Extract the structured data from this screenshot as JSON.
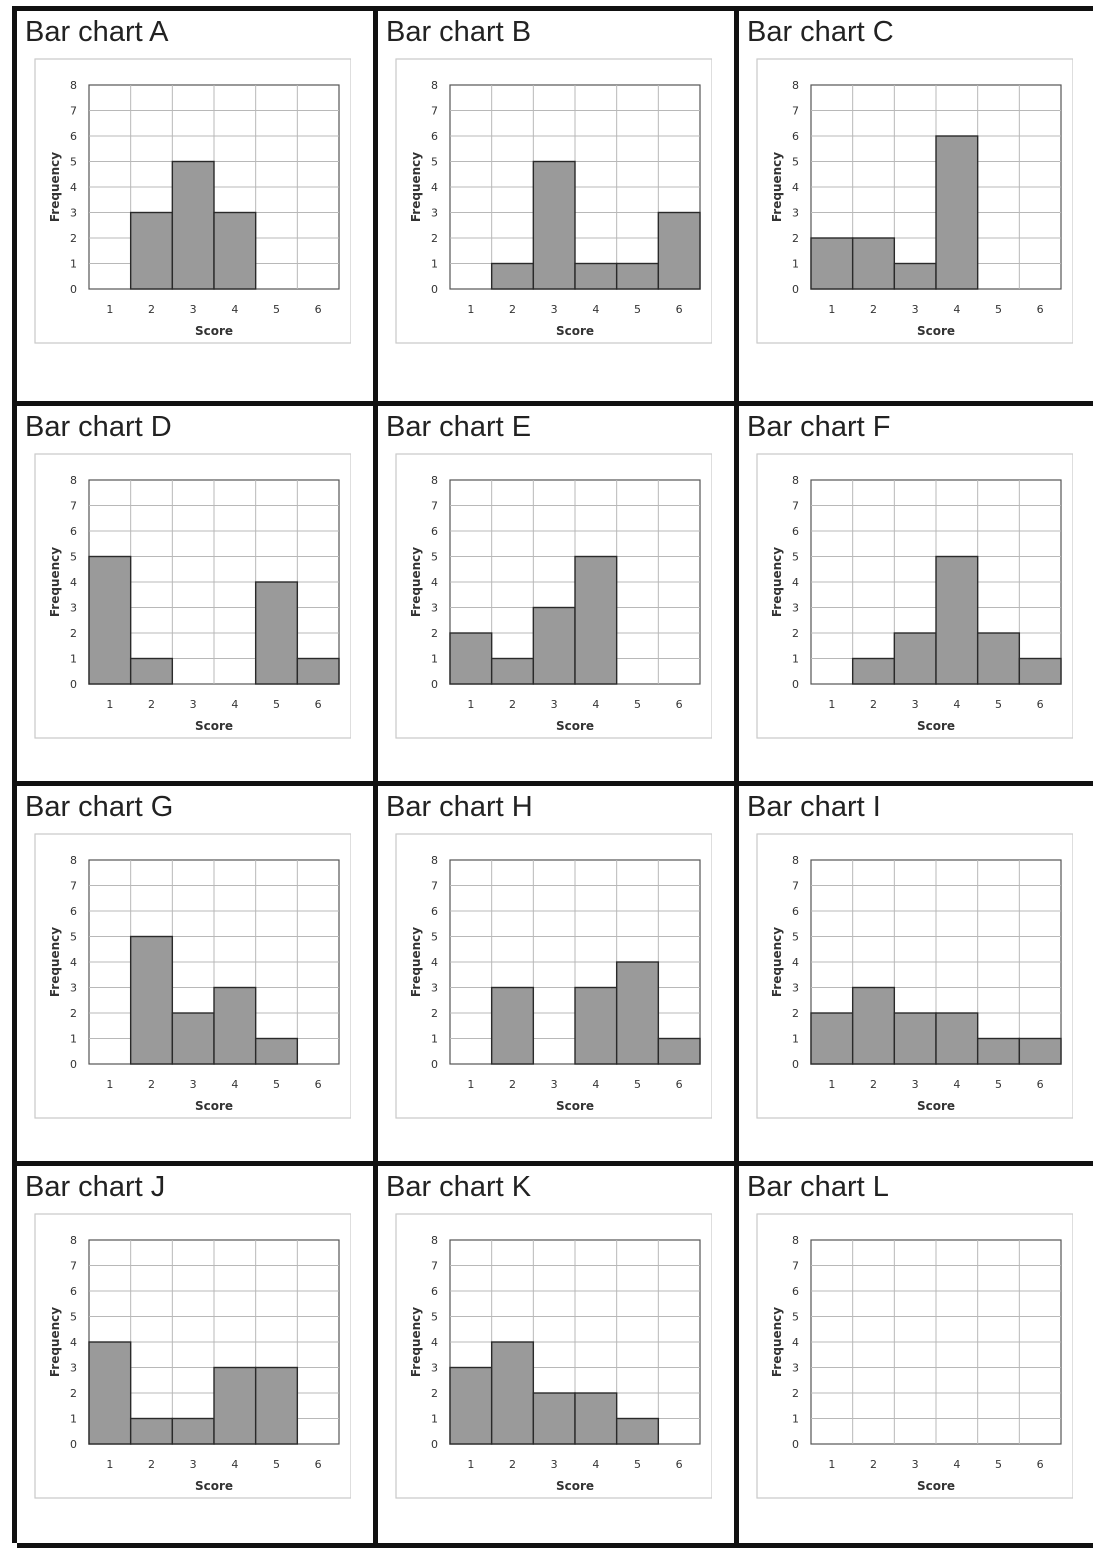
{
  "chart_data": [
    {
      "type": "bar",
      "title": "Bar chart A",
      "xlabel": "Score",
      "ylabel": "Frequency",
      "categories": [
        "1",
        "2",
        "3",
        "4",
        "5",
        "6"
      ],
      "values": [
        0,
        3,
        5,
        3,
        0,
        0
      ],
      "ylim": [
        0,
        8
      ],
      "yticks": [
        "0",
        "1",
        "2",
        "3",
        "4",
        "5",
        "6",
        "7",
        "8"
      ],
      "grid": true
    },
    {
      "type": "bar",
      "title": "Bar chart B",
      "xlabel": "Score",
      "ylabel": "Frequency",
      "categories": [
        "1",
        "2",
        "3",
        "4",
        "5",
        "6"
      ],
      "values": [
        0,
        1,
        5,
        1,
        1,
        3
      ],
      "ylim": [
        0,
        8
      ],
      "yticks": [
        "0",
        "1",
        "2",
        "3",
        "4",
        "5",
        "6",
        "7",
        "8"
      ],
      "grid": true
    },
    {
      "type": "bar",
      "title": "Bar chart C",
      "xlabel": "Score",
      "ylabel": "Frequency",
      "categories": [
        "1",
        "2",
        "3",
        "4",
        "5",
        "6"
      ],
      "values": [
        2,
        2,
        1,
        6,
        0,
        0
      ],
      "ylim": [
        0,
        8
      ],
      "yticks": [
        "0",
        "1",
        "2",
        "3",
        "4",
        "5",
        "6",
        "7",
        "8"
      ],
      "grid": true
    },
    {
      "type": "bar",
      "title": "Bar chart D",
      "xlabel": "Score",
      "ylabel": "Frequency",
      "categories": [
        "1",
        "2",
        "3",
        "4",
        "5",
        "6"
      ],
      "values": [
        5,
        1,
        0,
        0,
        4,
        1
      ],
      "ylim": [
        0,
        8
      ],
      "yticks": [
        "0",
        "1",
        "2",
        "3",
        "4",
        "5",
        "6",
        "7",
        "8"
      ],
      "grid": true
    },
    {
      "type": "bar",
      "title": "Bar chart E",
      "xlabel": "Score",
      "ylabel": "Frequency",
      "categories": [
        "1",
        "2",
        "3",
        "4",
        "5",
        "6"
      ],
      "values": [
        2,
        1,
        3,
        5,
        0,
        0
      ],
      "ylim": [
        0,
        8
      ],
      "yticks": [
        "0",
        "1",
        "2",
        "3",
        "4",
        "5",
        "6",
        "7",
        "8"
      ],
      "grid": true
    },
    {
      "type": "bar",
      "title": "Bar chart F",
      "xlabel": "Score",
      "ylabel": "Frequency",
      "categories": [
        "1",
        "2",
        "3",
        "4",
        "5",
        "6"
      ],
      "values": [
        0,
        1,
        2,
        5,
        2,
        1
      ],
      "ylim": [
        0,
        8
      ],
      "yticks": [
        "0",
        "1",
        "2",
        "3",
        "4",
        "5",
        "6",
        "7",
        "8"
      ],
      "grid": true
    },
    {
      "type": "bar",
      "title": "Bar chart G",
      "xlabel": "Score",
      "ylabel": "Frequency",
      "categories": [
        "1",
        "2",
        "3",
        "4",
        "5",
        "6"
      ],
      "values": [
        0,
        5,
        2,
        3,
        1,
        0
      ],
      "ylim": [
        0,
        8
      ],
      "yticks": [
        "0",
        "1",
        "2",
        "3",
        "4",
        "5",
        "6",
        "7",
        "8"
      ],
      "grid": true
    },
    {
      "type": "bar",
      "title": "Bar chart H",
      "xlabel": "Score",
      "ylabel": "Frequency",
      "categories": [
        "1",
        "2",
        "3",
        "4",
        "5",
        "6"
      ],
      "values": [
        0,
        3,
        0,
        3,
        4,
        1
      ],
      "ylim": [
        0,
        8
      ],
      "yticks": [
        "0",
        "1",
        "2",
        "3",
        "4",
        "5",
        "6",
        "7",
        "8"
      ],
      "grid": true
    },
    {
      "type": "bar",
      "title": "Bar chart I",
      "xlabel": "Score",
      "ylabel": "Frequency",
      "categories": [
        "1",
        "2",
        "3",
        "4",
        "5",
        "6"
      ],
      "values": [
        2,
        3,
        2,
        2,
        1,
        1
      ],
      "ylim": [
        0,
        8
      ],
      "yticks": [
        "0",
        "1",
        "2",
        "3",
        "4",
        "5",
        "6",
        "7",
        "8"
      ],
      "grid": true
    },
    {
      "type": "bar",
      "title": "Bar chart J",
      "xlabel": "Score",
      "ylabel": "Frequency",
      "categories": [
        "1",
        "2",
        "3",
        "4",
        "5",
        "6"
      ],
      "values": [
        4,
        1,
        1,
        3,
        3,
        0
      ],
      "ylim": [
        0,
        8
      ],
      "yticks": [
        "0",
        "1",
        "2",
        "3",
        "4",
        "5",
        "6",
        "7",
        "8"
      ],
      "grid": true
    },
    {
      "type": "bar",
      "title": "Bar chart K",
      "xlabel": "Score",
      "ylabel": "Frequency",
      "categories": [
        "1",
        "2",
        "3",
        "4",
        "5",
        "6"
      ],
      "values": [
        3,
        4,
        2,
        2,
        1,
        0
      ],
      "ylim": [
        0,
        8
      ],
      "yticks": [
        "0",
        "1",
        "2",
        "3",
        "4",
        "5",
        "6",
        "7",
        "8"
      ],
      "grid": true
    },
    {
      "type": "bar",
      "title": "Bar chart L",
      "xlabel": "Score",
      "ylabel": "Frequency",
      "categories": [
        "1",
        "2",
        "3",
        "4",
        "5",
        "6"
      ],
      "values": [
        0,
        0,
        0,
        0,
        0,
        0
      ],
      "ylim": [
        0,
        8
      ],
      "yticks": [
        "0",
        "1",
        "2",
        "3",
        "4",
        "5",
        "6",
        "7",
        "8"
      ],
      "grid": true
    }
  ],
  "colors": {
    "bar_fill": "#9a9a9a",
    "bar_stroke": "#2a2a2a",
    "grid": "#b8b8b8",
    "cell_border": "#111111"
  }
}
